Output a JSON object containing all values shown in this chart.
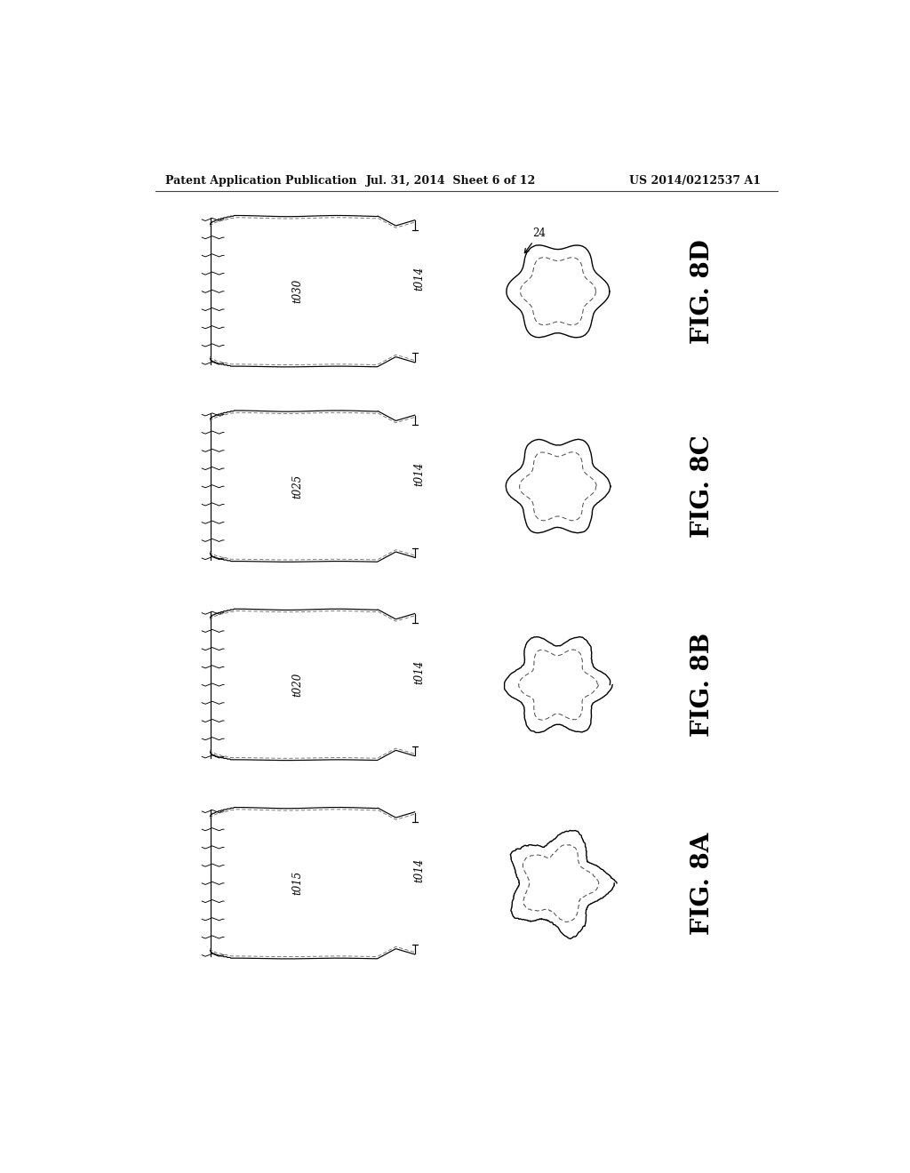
{
  "background_color": "#ffffff",
  "header_left": "Patent Application Publication",
  "header_center": "Jul. 31, 2014  Sheet 6 of 12",
  "header_right": "US 2014/0212537 A1",
  "figures": [
    {
      "label": "FIG. 8D",
      "time_label": "t030",
      "side_label": "t014",
      "row": 0
    },
    {
      "label": "FIG. 8C",
      "time_label": "t025",
      "side_label": "t014",
      "row": 1
    },
    {
      "label": "FIG. 8B",
      "time_label": "t020",
      "side_label": "t014",
      "row": 2
    },
    {
      "label": "FIG. 8A",
      "time_label": "t015",
      "side_label": "t014",
      "row": 3
    }
  ],
  "arrow_label": "24",
  "line_color": "#000000",
  "dashed_color": "#555555",
  "fig_label_fontsize": 20,
  "annot_fontsize": 8
}
